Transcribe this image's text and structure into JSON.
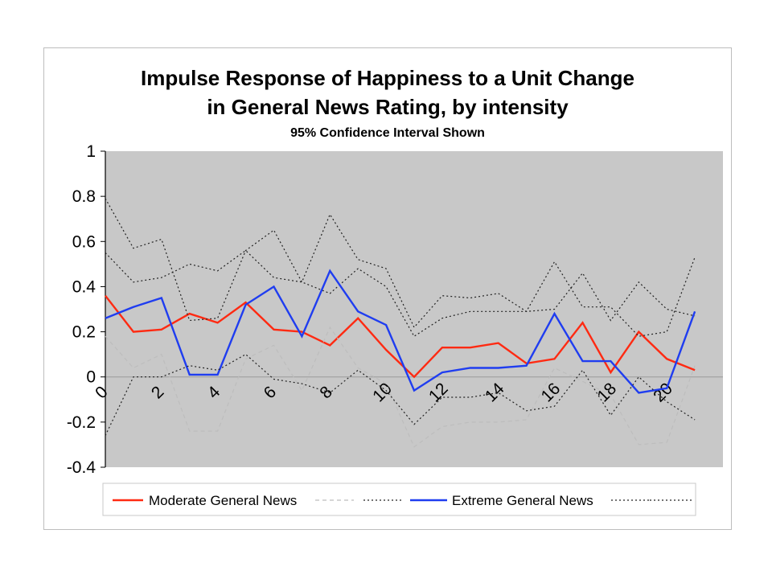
{
  "chart_data": {
    "type": "line",
    "title": "Impulse Response of Happiness to a Unit Change\nin General News Rating, by intensity",
    "subtitle": "95% Confidence Interval Shown",
    "xlabel": "",
    "ylabel": "",
    "ylim": [
      -0.4,
      1
    ],
    "xlim": [
      0,
      22
    ],
    "yticks": [
      "1",
      "0.8",
      "0.6",
      "0.4",
      "0.2",
      "0",
      "-0.2",
      "-0.4"
    ],
    "xticks": [
      "0",
      "2",
      "4",
      "6",
      "8",
      "10",
      "12",
      "14",
      "16",
      "18",
      "20"
    ],
    "grid": false,
    "legend_position": "bottom",
    "x": [
      0,
      1,
      2,
      3,
      4,
      5,
      6,
      7,
      8,
      9,
      10,
      11,
      12,
      13,
      14,
      15,
      16,
      17,
      18,
      19,
      20,
      21
    ],
    "series": [
      {
        "name": "Moderate General News",
        "color": "#ff2a12",
        "style": "solid",
        "in_legend": true,
        "values": [
          0.36,
          0.2,
          0.21,
          0.28,
          0.24,
          0.33,
          0.21,
          0.2,
          0.14,
          0.26,
          0.12,
          0.0,
          0.13,
          0.13,
          0.15,
          0.06,
          0.08,
          0.24,
          0.02,
          0.2,
          0.08,
          0.03
        ]
      },
      {
        "name": "",
        "color": "#bdbdbd",
        "style": "dashed",
        "in_legend": true,
        "values": [
          0.18,
          0.04,
          0.1,
          -0.24,
          -0.24,
          0.08,
          0.14,
          -0.06,
          0.22,
          0.04,
          -0.03,
          -0.31,
          -0.22,
          -0.2,
          -0.2,
          -0.19,
          0.04,
          -0.02,
          -0.08,
          -0.3,
          -0.29,
          0.05
        ]
      },
      {
        "name": "",
        "color": "#222222",
        "style": "dotted",
        "in_legend": true,
        "values": [
          0.55,
          0.42,
          0.44,
          0.5,
          0.47,
          0.56,
          0.44,
          0.42,
          0.37,
          0.48,
          0.4,
          0.18,
          0.26,
          0.29,
          0.29,
          0.29,
          0.3,
          0.46,
          0.25,
          0.42,
          0.3,
          0.27
        ]
      },
      {
        "name": "Extreme General News",
        "color": "#1f3df0",
        "style": "solid",
        "in_legend": true,
        "values": [
          0.26,
          0.31,
          0.35,
          0.01,
          0.01,
          0.32,
          0.4,
          0.18,
          0.47,
          0.29,
          0.23,
          -0.06,
          0.02,
          0.04,
          0.04,
          0.05,
          0.28,
          0.07,
          0.07,
          -0.07,
          -0.05,
          0.29
        ]
      },
      {
        "name": "",
        "color": "#222222",
        "style": "dotted",
        "in_legend": true,
        "values": [
          0.79,
          0.57,
          0.61,
          0.25,
          0.26,
          0.56,
          0.65,
          0.42,
          0.72,
          0.52,
          0.48,
          0.22,
          0.36,
          0.35,
          0.37,
          0.29,
          0.51,
          0.31,
          0.31,
          0.18,
          0.2,
          0.53
        ]
      },
      {
        "name": "",
        "color": "#222222",
        "style": "dotted",
        "in_legend": false,
        "values": [
          -0.26,
          0.0,
          0.0,
          0.05,
          0.03,
          0.1,
          -0.01,
          -0.03,
          -0.07,
          0.03,
          -0.06,
          -0.21,
          -0.09,
          -0.09,
          -0.07,
          -0.15,
          -0.13,
          0.03,
          -0.17,
          0.0,
          -0.11,
          -0.19
        ]
      }
    ]
  }
}
